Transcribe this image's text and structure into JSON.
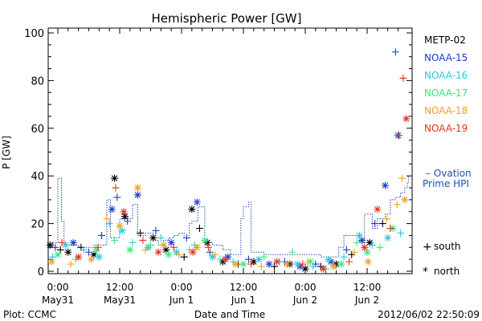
{
  "chart_data": {
    "type": "scatter",
    "title": "Hemispheric Power [GW]",
    "ylabel": "P [GW]",
    "xlabel": "Date and Time",
    "ylim": [
      0,
      100
    ],
    "yticks": [
      0,
      20,
      40,
      60,
      80,
      100
    ],
    "xlim_hours": [
      -3,
      68
    ],
    "xticks": [
      {
        "t": 0,
        "time": "0:00",
        "date": "May31"
      },
      {
        "t": 12,
        "time": "12:00",
        "date": "May31"
      },
      {
        "t": 24,
        "time": "0:00",
        "date": "Jun 1"
      },
      {
        "t": 36,
        "time": "12:00",
        "date": "Jun 1"
      },
      {
        "t": 48,
        "time": "0:00",
        "date": "Jun 2"
      },
      {
        "t": 60,
        "time": "12:00",
        "date": "Jun 2"
      }
    ],
    "grid": false,
    "legend_position": "right",
    "footer_left": "Plot: CCMC",
    "footer_right": "2012/06/02 22:50:09",
    "marker_legend": [
      {
        "symbol": "+",
        "label": "south"
      },
      {
        "symbol": "*",
        "label": "north"
      }
    ],
    "series": [
      {
        "name": "METP-02",
        "color": "#000000",
        "points": [
          {
            "x": -1.5,
            "y": 11,
            "m": "*"
          },
          {
            "x": 0.5,
            "y": 9,
            "m": "+"
          },
          {
            "x": 2,
            "y": 8,
            "m": "*"
          },
          {
            "x": 4.5,
            "y": 10,
            "m": "+"
          },
          {
            "x": 7,
            "y": 7,
            "m": "*"
          },
          {
            "x": 11,
            "y": 39,
            "m": "*"
          },
          {
            "x": 13,
            "y": 23,
            "m": "*"
          },
          {
            "x": 16,
            "y": 16,
            "m": "+"
          },
          {
            "x": 18.5,
            "y": 14,
            "m": "*"
          },
          {
            "x": 21,
            "y": 9,
            "m": "*"
          },
          {
            "x": 24.5,
            "y": 6,
            "m": "+"
          },
          {
            "x": 26,
            "y": 26,
            "m": "*"
          },
          {
            "x": 27.5,
            "y": 18,
            "m": "+"
          },
          {
            "x": 29,
            "y": 12,
            "m": "*"
          },
          {
            "x": 32,
            "y": 4,
            "m": "*"
          },
          {
            "x": 35,
            "y": 3,
            "m": "+"
          },
          {
            "x": 38,
            "y": 4,
            "m": "*"
          },
          {
            "x": 42,
            "y": 2,
            "m": "+"
          },
          {
            "x": 45,
            "y": 3,
            "m": "*"
          },
          {
            "x": 48,
            "y": 1,
            "m": "*"
          },
          {
            "x": 51,
            "y": 2,
            "m": "+"
          },
          {
            "x": 54,
            "y": 3,
            "m": "*"
          },
          {
            "x": 57,
            "y": 7,
            "m": "+"
          },
          {
            "x": 60.5,
            "y": 12,
            "m": "*"
          },
          {
            "x": 63,
            "y": 20,
            "m": "+"
          }
        ]
      },
      {
        "name": "NOAA-15",
        "color": "#1c3cc8",
        "points": [
          {
            "x": -0.5,
            "y": 10,
            "m": "+"
          },
          {
            "x": 3,
            "y": 12,
            "m": "*"
          },
          {
            "x": 6,
            "y": 8,
            "m": "+"
          },
          {
            "x": 8.5,
            "y": 15,
            "m": "+"
          },
          {
            "x": 10.5,
            "y": 26,
            "m": "*"
          },
          {
            "x": 11.5,
            "y": 31,
            "m": "+"
          },
          {
            "x": 13.5,
            "y": 21,
            "m": "+"
          },
          {
            "x": 15.5,
            "y": 32,
            "m": "*"
          },
          {
            "x": 19,
            "y": 17,
            "m": "+"
          },
          {
            "x": 22,
            "y": 12,
            "m": "*"
          },
          {
            "x": 25,
            "y": 14,
            "m": "+"
          },
          {
            "x": 27,
            "y": 29,
            "m": "*"
          },
          {
            "x": 29.5,
            "y": 8,
            "m": "+"
          },
          {
            "x": 33,
            "y": 6,
            "m": "*"
          },
          {
            "x": 37,
            "y": 5,
            "m": "+"
          },
          {
            "x": 41,
            "y": 3,
            "m": "*"
          },
          {
            "x": 44,
            "y": 4,
            "m": "+"
          },
          {
            "x": 47,
            "y": 2,
            "m": "*"
          },
          {
            "x": 50,
            "y": 3,
            "m": "+"
          },
          {
            "x": 53,
            "y": 4,
            "m": "*"
          },
          {
            "x": 56,
            "y": 9,
            "m": "+"
          },
          {
            "x": 59,
            "y": 13,
            "m": "*"
          },
          {
            "x": 61.5,
            "y": 20,
            "m": "+"
          },
          {
            "x": 63.5,
            "y": 36,
            "m": "*"
          },
          {
            "x": 65.5,
            "y": 92,
            "m": "+"
          },
          {
            "x": 66,
            "y": 57,
            "m": "*"
          }
        ]
      },
      {
        "name": "NOAA-16",
        "color": "#2cc8dc",
        "points": [
          {
            "x": -1,
            "y": 6,
            "m": "+"
          },
          {
            "x": 1.5,
            "y": 11,
            "m": "*"
          },
          {
            "x": 5,
            "y": 9,
            "m": "+"
          },
          {
            "x": 8,
            "y": 6,
            "m": "*"
          },
          {
            "x": 10,
            "y": 20,
            "m": "+"
          },
          {
            "x": 12.5,
            "y": 17,
            "m": "*"
          },
          {
            "x": 14.5,
            "y": 12,
            "m": "+"
          },
          {
            "x": 17.5,
            "y": 10,
            "m": "*"
          },
          {
            "x": 20,
            "y": 14,
            "m": "+"
          },
          {
            "x": 23,
            "y": 8,
            "m": "*"
          },
          {
            "x": 26.5,
            "y": 11,
            "m": "+"
          },
          {
            "x": 30,
            "y": 6,
            "m": "*"
          },
          {
            "x": 34,
            "y": 4,
            "m": "+"
          },
          {
            "x": 39,
            "y": 5,
            "m": "*"
          },
          {
            "x": 43,
            "y": 4,
            "m": "+"
          },
          {
            "x": 46.5,
            "y": 3,
            "m": "*"
          },
          {
            "x": 49.5,
            "y": 2,
            "m": "+"
          },
          {
            "x": 52.5,
            "y": 5,
            "m": "*"
          },
          {
            "x": 55.5,
            "y": 6,
            "m": "+"
          },
          {
            "x": 58.5,
            "y": 15,
            "m": "*"
          },
          {
            "x": 61,
            "y": 11,
            "m": "+"
          },
          {
            "x": 64,
            "y": 14,
            "m": "*"
          },
          {
            "x": 66.5,
            "y": 16,
            "m": "+"
          }
        ]
      },
      {
        "name": "NOAA-17",
        "color": "#3ce67a",
        "points": [
          {
            "x": 0,
            "y": 7,
            "m": "*"
          },
          {
            "x": 3.5,
            "y": 5,
            "m": "+"
          },
          {
            "x": 7.5,
            "y": 9,
            "m": "*"
          },
          {
            "x": 11,
            "y": 13,
            "m": "+"
          },
          {
            "x": 14,
            "y": 9,
            "m": "*"
          },
          {
            "x": 18,
            "y": 11,
            "m": "+"
          },
          {
            "x": 21.5,
            "y": 7,
            "m": "*"
          },
          {
            "x": 25.5,
            "y": 9,
            "m": "+"
          },
          {
            "x": 28.5,
            "y": 13,
            "m": "*"
          },
          {
            "x": 31.5,
            "y": 5,
            "m": "+"
          },
          {
            "x": 36,
            "y": 3,
            "m": "*"
          },
          {
            "x": 40,
            "y": 6,
            "m": "+"
          },
          {
            "x": 45.5,
            "y": 8,
            "m": "+"
          },
          {
            "x": 49,
            "y": 4,
            "m": "*"
          },
          {
            "x": 52,
            "y": 1,
            "m": "+"
          },
          {
            "x": 55,
            "y": 3,
            "m": "*"
          },
          {
            "x": 58,
            "y": 12,
            "m": "+"
          },
          {
            "x": 60,
            "y": 8,
            "m": "*"
          },
          {
            "x": 62.5,
            "y": 10,
            "m": "+"
          },
          {
            "x": 65,
            "y": 18,
            "m": "*"
          }
        ]
      },
      {
        "name": "NOAA-18",
        "color": "#f0a020",
        "points": [
          {
            "x": -1.2,
            "y": 4,
            "m": "*"
          },
          {
            "x": 2.5,
            "y": 3,
            "m": "+"
          },
          {
            "x": 6.5,
            "y": 5,
            "m": "*"
          },
          {
            "x": 9.5,
            "y": 22,
            "m": "+"
          },
          {
            "x": 12,
            "y": 19,
            "m": "*"
          },
          {
            "x": 15.5,
            "y": 35,
            "m": "*"
          },
          {
            "x": 17,
            "y": 9,
            "m": "+"
          },
          {
            "x": 20.5,
            "y": 11,
            "m": "*"
          },
          {
            "x": 23.5,
            "y": 7,
            "m": "+"
          },
          {
            "x": 27,
            "y": 10,
            "m": "*"
          },
          {
            "x": 30.5,
            "y": 7,
            "m": "+"
          },
          {
            "x": 34.5,
            "y": 3,
            "m": "*"
          },
          {
            "x": 39.5,
            "y": 2,
            "m": "+"
          },
          {
            "x": 44.5,
            "y": 3,
            "m": "*"
          },
          {
            "x": 48.5,
            "y": 4,
            "m": "+"
          },
          {
            "x": 53.5,
            "y": 2,
            "m": "*"
          },
          {
            "x": 57.5,
            "y": 8,
            "m": "+"
          },
          {
            "x": 60.2,
            "y": 4,
            "m": "*"
          },
          {
            "x": 63.8,
            "y": 22,
            "m": "+"
          },
          {
            "x": 65.8,
            "y": 28,
            "m": "+"
          },
          {
            "x": 66.8,
            "y": 39,
            "m": "+"
          },
          {
            "x": 67.3,
            "y": 30,
            "m": "*"
          }
        ]
      },
      {
        "name": "NOAA-19",
        "color": "#e0321e",
        "points": [
          {
            "x": 0.8,
            "y": 12,
            "m": "+"
          },
          {
            "x": 4,
            "y": 6,
            "m": "*"
          },
          {
            "x": 7.8,
            "y": 10,
            "m": "+"
          },
          {
            "x": 11.2,
            "y": 35,
            "m": "+"
          },
          {
            "x": 12.8,
            "y": 25,
            "m": "*"
          },
          {
            "x": 16.5,
            "y": 13,
            "m": "+"
          },
          {
            "x": 19.5,
            "y": 8,
            "m": "*"
          },
          {
            "x": 22.5,
            "y": 10,
            "m": "+"
          },
          {
            "x": 26.2,
            "y": 8,
            "m": "*"
          },
          {
            "x": 29.2,
            "y": 10,
            "m": "+"
          },
          {
            "x": 32.5,
            "y": 5,
            "m": "*"
          },
          {
            "x": 37.5,
            "y": 3,
            "m": "+"
          },
          {
            "x": 42.5,
            "y": 4,
            "m": "*"
          },
          {
            "x": 47.5,
            "y": 3,
            "m": "+"
          },
          {
            "x": 51.5,
            "y": 1,
            "m": "*"
          },
          {
            "x": 56.5,
            "y": 4,
            "m": "+"
          },
          {
            "x": 59.5,
            "y": 10,
            "m": "*"
          },
          {
            "x": 62,
            "y": 26,
            "m": "*"
          },
          {
            "x": 64.5,
            "y": 18,
            "m": "+"
          },
          {
            "x": 66.2,
            "y": 57,
            "m": "+"
          },
          {
            "x": 67,
            "y": 81,
            "m": "+"
          },
          {
            "x": 67.6,
            "y": 64,
            "m": "*"
          }
        ]
      }
    ],
    "reference": {
      "name": "Ovation Prime HPI",
      "label_line1": "– Ovation",
      "label_line2": "Prime HPI",
      "color": "#1f4fae",
      "steps": [
        {
          "x": -3,
          "y": 10
        },
        {
          "x": -1,
          "y": 12
        },
        {
          "x": 0,
          "y": 39
        },
        {
          "x": 0.7,
          "y": 21
        },
        {
          "x": 1.2,
          "y": 11
        },
        {
          "x": 4,
          "y": 10
        },
        {
          "x": 7,
          "y": 11
        },
        {
          "x": 9.5,
          "y": 30
        },
        {
          "x": 10.2,
          "y": 14
        },
        {
          "x": 12,
          "y": 22
        },
        {
          "x": 14.5,
          "y": 28
        },
        {
          "x": 15.5,
          "y": 15
        },
        {
          "x": 17,
          "y": 16
        },
        {
          "x": 18.5,
          "y": 13
        },
        {
          "x": 19.5,
          "y": 11
        },
        {
          "x": 20.5,
          "y": 13
        },
        {
          "x": 21.5,
          "y": 14
        },
        {
          "x": 22.5,
          "y": 15
        },
        {
          "x": 23.5,
          "y": 16
        },
        {
          "x": 24.5,
          "y": 14
        },
        {
          "x": 25.5,
          "y": 20
        },
        {
          "x": 26,
          "y": 21
        },
        {
          "x": 27.2,
          "y": 27
        },
        {
          "x": 28.5,
          "y": 12
        },
        {
          "x": 30,
          "y": 11
        },
        {
          "x": 32,
          "y": 9
        },
        {
          "x": 33.5,
          "y": 7
        },
        {
          "x": 34.5,
          "y": 7
        },
        {
          "x": 35.5,
          "y": 22
        },
        {
          "x": 36,
          "y": 27
        },
        {
          "x": 37,
          "y": 29
        },
        {
          "x": 37.5,
          "y": 8
        },
        {
          "x": 40,
          "y": 7
        },
        {
          "x": 43,
          "y": 7
        },
        {
          "x": 46,
          "y": 7
        },
        {
          "x": 49,
          "y": 7
        },
        {
          "x": 51,
          "y": 6
        },
        {
          "x": 53,
          "y": 6
        },
        {
          "x": 54.5,
          "y": 10
        },
        {
          "x": 55.5,
          "y": 15
        },
        {
          "x": 57,
          "y": 15
        },
        {
          "x": 58.5,
          "y": 12
        },
        {
          "x": 59.5,
          "y": 24
        },
        {
          "x": 61,
          "y": 18
        },
        {
          "x": 62,
          "y": 22
        },
        {
          "x": 63.5,
          "y": 24
        },
        {
          "x": 64.5,
          "y": 30
        },
        {
          "x": 65.5,
          "y": 31
        },
        {
          "x": 66.5,
          "y": 33
        },
        {
          "x": 67.3,
          "y": 35
        },
        {
          "x": 67.8,
          "y": 37
        },
        {
          "x": 68,
          "y": 40
        }
      ]
    }
  }
}
